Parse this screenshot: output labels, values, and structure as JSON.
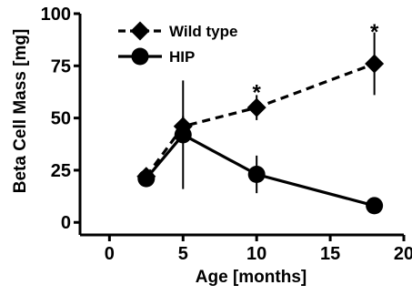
{
  "chart_data": {
    "type": "line",
    "title": "",
    "xlabel": "Age [months]",
    "ylabel": "Beta Cell Mass [mg]",
    "xlim": [
      -2,
      20
    ],
    "ylim": [
      -6,
      100
    ],
    "xticks": [
      0,
      5,
      10,
      15,
      20
    ],
    "yticks": [
      0,
      25,
      50,
      75,
      100
    ],
    "grid": false,
    "legend_position": "top-left",
    "series": [
      {
        "name": "Wild type",
        "marker": "diamond",
        "line_style": "dashed",
        "color": "#000000",
        "x": [
          2.5,
          5,
          10,
          18
        ],
        "y": [
          22,
          46,
          55,
          76
        ],
        "error": [
          null,
          5,
          6,
          15
        ]
      },
      {
        "name": "HIP",
        "marker": "circle",
        "line_style": "solid",
        "color": "#000000",
        "x": [
          2.5,
          5,
          10,
          18
        ],
        "y": [
          21,
          42,
          23,
          8
        ],
        "error": [
          3,
          26,
          9,
          null
        ]
      }
    ],
    "annotations": [
      {
        "text": "*",
        "x": 10,
        "y": 64
      },
      {
        "text": "*",
        "x": 18,
        "y": 93
      }
    ]
  }
}
